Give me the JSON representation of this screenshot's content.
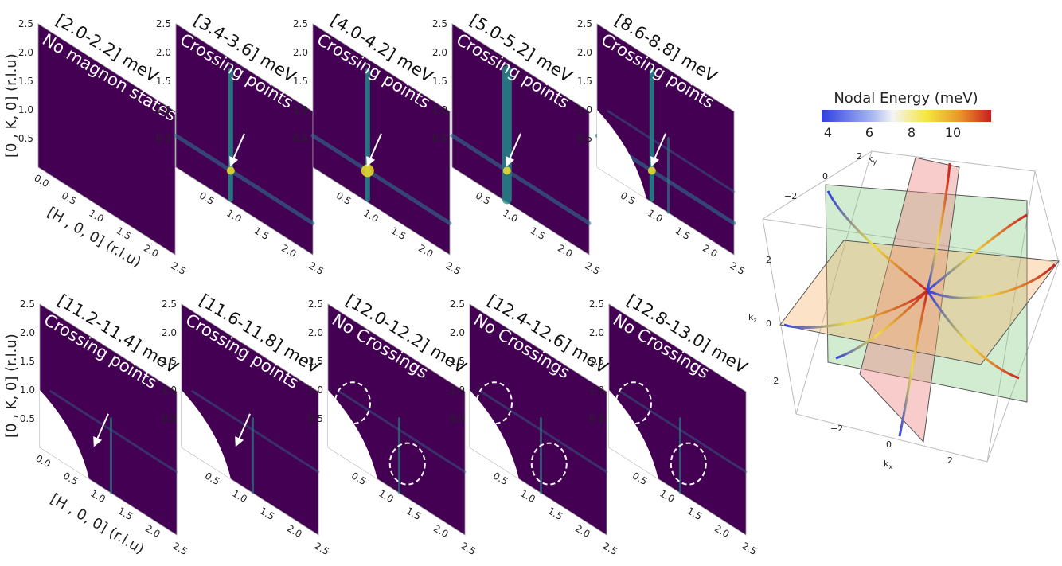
{
  "axis_labels": {
    "y": "[0 , K, 0] (r.l.u)",
    "x": "[H , 0, 0] (r.l.u)"
  },
  "tick_labels": [
    "0.0",
    "0.5",
    "1.0",
    "1.5",
    "2.0",
    "2.5"
  ],
  "panels": [
    {
      "label": "[2.0-2.2] meV",
      "annotation": "No magnon states"
    },
    {
      "label": "[3.4-3.6] meV",
      "annotation": "Crossing points"
    },
    {
      "label": "[4.0-4.2] meV",
      "annotation": "Crossing points"
    },
    {
      "label": "[5.0-5.2] meV",
      "annotation": "Crossing points"
    },
    {
      "label": "[8.6-8.8] meV",
      "annotation": "Crossing points"
    },
    {
      "label": "[11.2-11.4] meV",
      "annotation": "Crossing points"
    },
    {
      "label": "[11.6-11.8] meV",
      "annotation": "Crossing points"
    },
    {
      "label": "[12.0-12.2] meV",
      "annotation": "No Crossings"
    },
    {
      "label": "[12.4-12.6] meV",
      "annotation": "No Crossings"
    },
    {
      "label": "[12.8-13.0] meV",
      "annotation": "No Crossings"
    }
  ],
  "colorbar": {
    "title": "Nodal Energy (meV)",
    "ticks": [
      "4",
      "6",
      "8",
      "10"
    ]
  },
  "plot3d": {
    "axis_labels": [
      {
        "base": "k",
        "sub": "y"
      },
      {
        "base": "k",
        "sub": "z"
      },
      {
        "base": "k",
        "sub": "x"
      }
    ],
    "ticks": [
      "2",
      "0",
      "−2"
    ]
  }
}
